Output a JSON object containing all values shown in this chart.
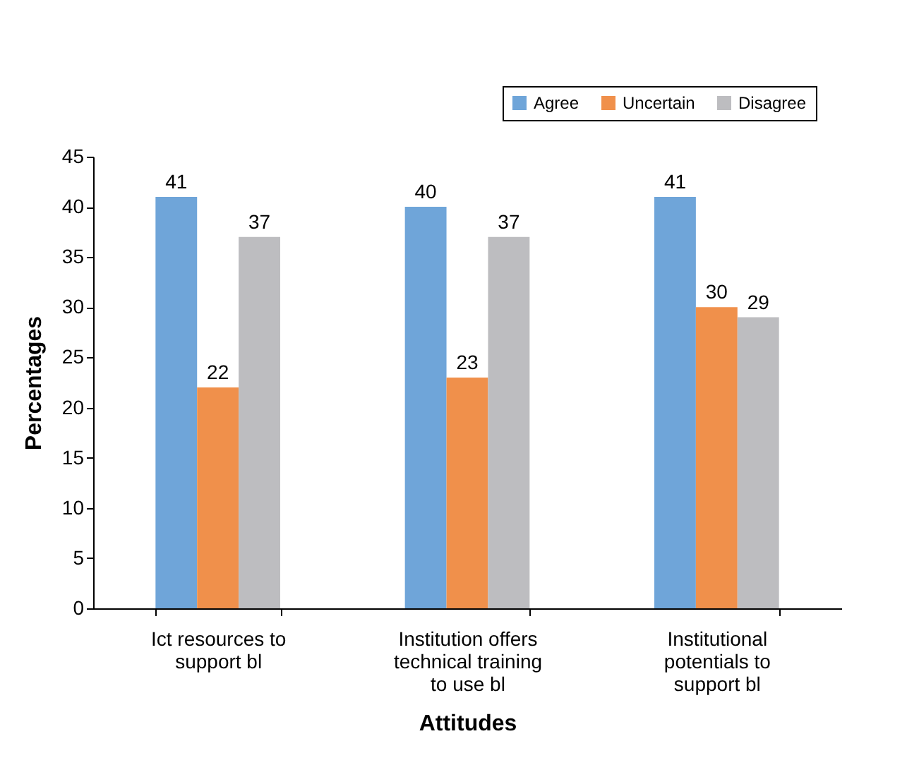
{
  "chart_data": {
    "type": "bar",
    "xlabel": "Attitudes",
    "ylabel": "Percentages",
    "categories": [
      "Ict resources to support bl",
      "Institution offers technical training to use bl",
      "Institutional potentials to support bl"
    ],
    "series": [
      {
        "name": "Agree",
        "color": "#6fa5d9",
        "values": [
          41,
          40,
          41
        ]
      },
      {
        "name": "Uncertain",
        "color": "#f0904b",
        "values": [
          22,
          23,
          30
        ]
      },
      {
        "name": "Disagree",
        "color": "#bdbdc0",
        "values": [
          37,
          37,
          29
        ]
      }
    ],
    "ylim": [
      0,
      45
    ],
    "yticks": [
      0,
      5,
      10,
      15,
      20,
      25,
      30,
      35,
      40,
      45
    ],
    "data_labels": true,
    "legend": "top right",
    "grid": false
  }
}
